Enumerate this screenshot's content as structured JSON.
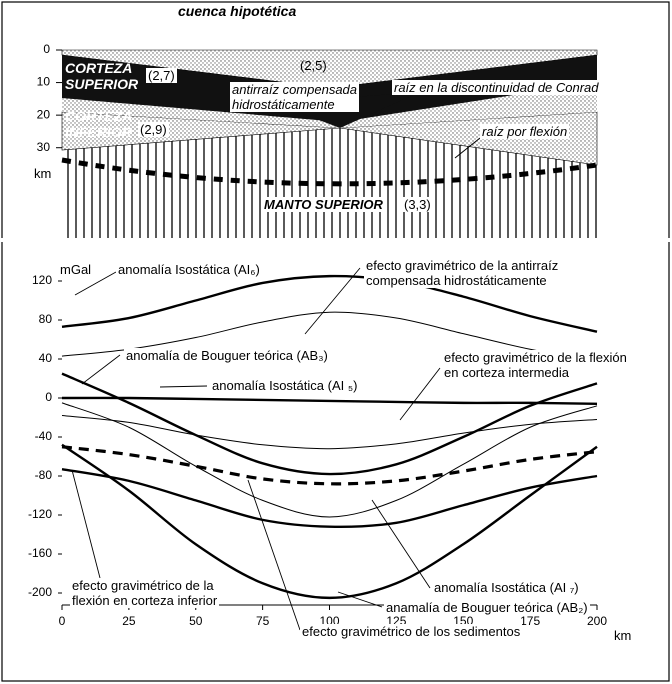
{
  "cross_section": {
    "title": "cuenca hipotética",
    "depth_lim": [
      0,
      35
    ],
    "depth_ticks": [
      0,
      10,
      20,
      30
    ],
    "depth_label": "km",
    "labels": {
      "upper_crust": "CORTEZA\nSUPERIOR",
      "upper_crust_density": "(2,7)",
      "basin_density": "(2,5)",
      "antiroot": "antirraíz compensada\nhidrostáticamente",
      "conrad_root": "raíz en la discontinuidad de Conrad",
      "lower_crust": "CORTEZA\nINFERIOR",
      "lower_crust_density": "(2,9)",
      "flexure_root": "raíz por flexión",
      "mantle": "MANTO SUPERIOR",
      "mantle_density": "(3,3)"
    }
  },
  "chart_data": {
    "type": "line",
    "ylabel": "mGal",
    "xlabel": "km",
    "xlim": [
      0,
      200
    ],
    "xticks": [
      0,
      25,
      50,
      75,
      100,
      125,
      150,
      175,
      200
    ],
    "ylim": [
      -200,
      120
    ],
    "yticks": [
      -200,
      -160,
      -120,
      -80,
      -40,
      0,
      40,
      80,
      120
    ],
    "x": [
      0,
      25,
      50,
      75,
      100,
      125,
      150,
      175,
      200
    ],
    "series": [
      {
        "name": "anomalía Isostática (AI₆)",
        "color": "#000000",
        "style": "thick",
        "values": [
          73,
          82,
          100,
          118,
          125,
          120,
          104,
          84,
          68
        ]
      },
      {
        "name": "efecto gravimétrico de la antirraíz\ncompensada hidrostáticamente",
        "color": "#000000",
        "style": "thin",
        "values": [
          43,
          50,
          62,
          78,
          88,
          82,
          66,
          50,
          38
        ]
      },
      {
        "name": "anomalía de Bouguer teórica (AB₃)",
        "color": "#000000",
        "style": "thick",
        "values": [
          25,
          -5,
          -38,
          -67,
          -78,
          -68,
          -40,
          -8,
          15
        ]
      },
      {
        "name": "efecto gravimétrico de la flexión\nen corteza intermedia",
        "color": "#000000",
        "style": "thin",
        "values": [
          -18,
          -25,
          -38,
          -48,
          -52,
          -47,
          -36,
          -27,
          -22
        ]
      },
      {
        "name": "anomalía Isostática (AI ₅)",
        "color": "#000000",
        "style": "thick",
        "values": [
          0,
          0,
          -1,
          -2,
          -3,
          -4,
          -5,
          -5,
          -6
        ]
      },
      {
        "name": "efecto gravimétrico de los sedimentos",
        "color": "#000000",
        "style": "thin",
        "values": [
          -5,
          -30,
          -70,
          -105,
          -122,
          -105,
          -68,
          -30,
          -8
        ]
      },
      {
        "name": "efecto gravimétrico de la\nflexión en corteza inferior",
        "color": "#000000",
        "style": "dashed",
        "values": [
          -50,
          -58,
          -70,
          -83,
          -88,
          -85,
          -75,
          -63,
          -55
        ]
      },
      {
        "name": "anomalía Isostática (AI ₇)",
        "color": "#000000",
        "style": "thick",
        "values": [
          -73,
          -85,
          -105,
          -125,
          -132,
          -128,
          -110,
          -92,
          -80
        ]
      },
      {
        "name": "anamalía de Bouguer teórica (AB₂)",
        "color": "#000000",
        "style": "thick",
        "values": [
          -48,
          -95,
          -150,
          -190,
          -205,
          -190,
          -150,
          -100,
          -50
        ]
      }
    ]
  }
}
